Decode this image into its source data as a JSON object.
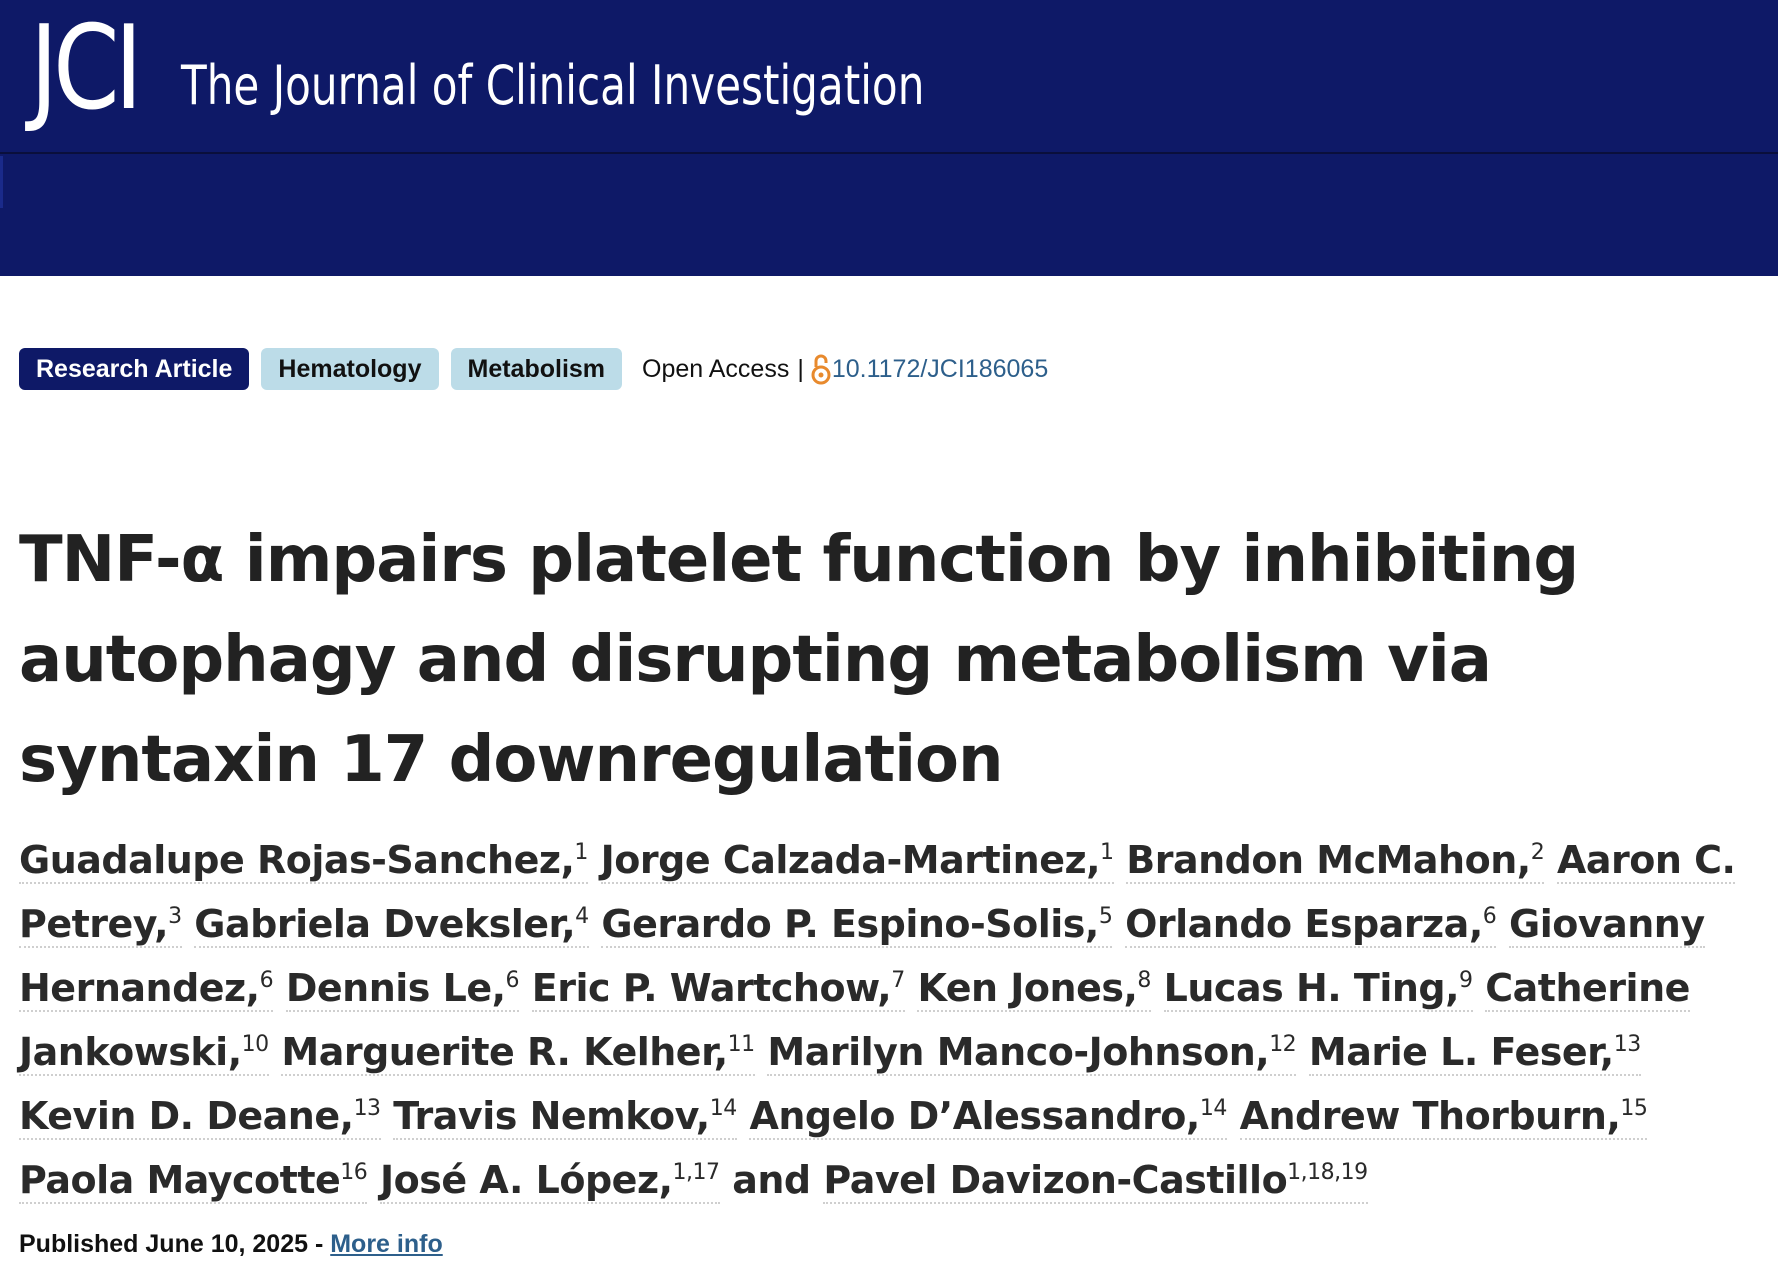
{
  "header": {
    "logo": "JCI",
    "journal_name": "The Journal of Clinical Investigation"
  },
  "article_meta": {
    "badges": [
      "Research Article",
      "Hematology",
      "Metabolism"
    ],
    "access": "Open Access",
    "separator": "|",
    "doi": "10.1172/JCI186065"
  },
  "article": {
    "title": "TNF-α impairs platelet function by inhibiting autophagy and disrupting metabolism via syntaxin 17 downregulation",
    "authors": [
      {
        "name": "Guadalupe Rojas-Sanchez",
        "sup": "1",
        "sep": ","
      },
      {
        "name": "Jorge Calzada-Martinez",
        "sup": "1",
        "sep": ","
      },
      {
        "name": "Brandon McMahon",
        "sup": "2",
        "sep": ","
      },
      {
        "name": "Aaron C. Petrey",
        "sup": "3",
        "sep": ","
      },
      {
        "name": "Gabriela Dveksler",
        "sup": "4",
        "sep": ","
      },
      {
        "name": "Gerardo P. Espino-Solis",
        "sup": "5",
        "sep": ","
      },
      {
        "name": "Orlando Esparza",
        "sup": "6",
        "sep": ","
      },
      {
        "name": "Giovanny Hernandez",
        "sup": "6",
        "sep": ","
      },
      {
        "name": "Dennis Le",
        "sup": "6",
        "sep": ","
      },
      {
        "name": "Eric P. Wartchow",
        "sup": "7",
        "sep": ","
      },
      {
        "name": "Ken Jones",
        "sup": "8",
        "sep": ","
      },
      {
        "name": "Lucas H. Ting",
        "sup": "9",
        "sep": ","
      },
      {
        "name": "Catherine Jankowski",
        "sup": "10",
        "sep": ","
      },
      {
        "name": "Marguerite R. Kelher",
        "sup": "11",
        "sep": ","
      },
      {
        "name": "Marilyn Manco-Johnson",
        "sup": "12",
        "sep": ","
      },
      {
        "name": "Marie L. Feser",
        "sup": "13",
        "sep": ","
      },
      {
        "name": "Kevin D. Deane",
        "sup": "13",
        "sep": ","
      },
      {
        "name": "Travis Nemkov",
        "sup": "14",
        "sep": ","
      },
      {
        "name": "Angelo D’Alessandro",
        "sup": "14",
        "sep": ","
      },
      {
        "name": "Andrew Thorburn",
        "sup": "15",
        "sep": ","
      },
      {
        "name": "Paola Maycotte",
        "sup": "16",
        "sep": ""
      },
      {
        "name": "José A. López",
        "sup": "1,17",
        "sep": ","
      },
      {
        "name": "Pavel Davizon-Castillo",
        "sup": "1,18,19",
        "sep": ""
      }
    ],
    "conjunction": "and",
    "published": "Published June 10, 2025",
    "published_sep": " - ",
    "more_info": "More info"
  },
  "colors": {
    "header_bg": "#0e1967",
    "badge_primary": "#0e1967",
    "badge_secondary": "#bcdce8",
    "link": "#2d5f8b",
    "open_access_icon": "#e88a2d"
  }
}
